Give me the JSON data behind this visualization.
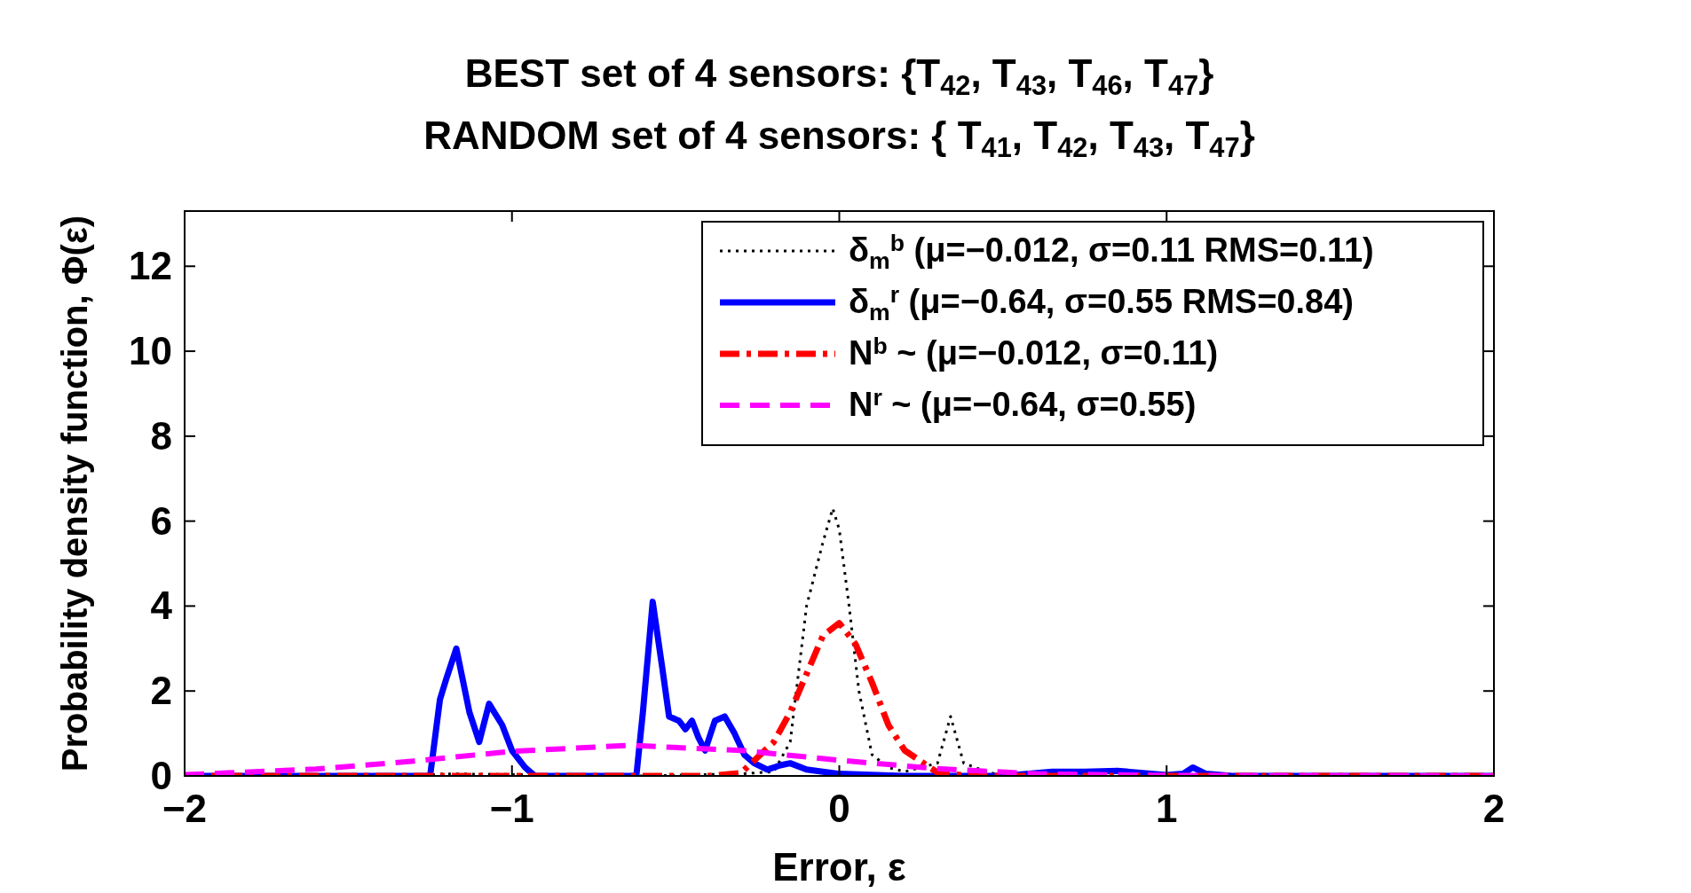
{
  "chart_data": {
    "type": "line",
    "title": "BEST set of 4 sensors: {T$_{42}$, T$_{43}$, T$_{46}$, T$_{47}$}",
    "subtitle": "RANDOM set of 4 sensors: { T$_{41}$, T$_{42}$, T$_{43}$, T$_{47}$}",
    "xlabel": "Error, ε",
    "ylabel": "Probability density function, Φ(ε)",
    "xlim": [
      -2,
      2
    ],
    "ylim": [
      0,
      13.3
    ],
    "xticks": [
      -2,
      -1,
      0,
      1,
      2
    ],
    "yticks": [
      0,
      2,
      4,
      6,
      8,
      10,
      12
    ],
    "grid": false,
    "legend": "top right",
    "series": [
      {
        "name": "δ$_{m}$$^{b}$ (μ=−0.012, σ=0.11 RMS=0.11)",
        "color": "#000000",
        "line_style": "dotted",
        "x": [
          -2,
          -1.3,
          -1.2,
          -0.6,
          -0.3,
          -0.2,
          -0.15,
          -0.1,
          -0.05,
          -0.02,
          0,
          0.03,
          0.06,
          0.1,
          0.15,
          0.2,
          0.25,
          0.3,
          0.34,
          0.38,
          0.45,
          0.5,
          2
        ],
        "values": [
          0,
          0,
          0.05,
          0,
          0.05,
          0.1,
          0.8,
          4,
          5.5,
          6.3,
          5.8,
          4,
          2,
          0.5,
          0.2,
          0.1,
          0.2,
          0.3,
          1.4,
          0.3,
          0.1,
          0,
          0
        ]
      },
      {
        "name": "δ$_{m}$$^{r}$ (μ=−0.64, σ=0.55 RMS=0.84)",
        "color": "#0000ff",
        "line_style": "solid",
        "x": [
          -2,
          -1.25,
          -1.22,
          -1.2,
          -1.17,
          -1.13,
          -1.1,
          -1.07,
          -1.03,
          -1,
          -0.96,
          -0.93,
          -0.62,
          -0.6,
          -0.57,
          -0.54,
          -0.52,
          -0.49,
          -0.47,
          -0.45,
          -0.43,
          -0.41,
          -0.38,
          -0.35,
          -0.32,
          -0.29,
          -0.26,
          -0.22,
          -0.18,
          -0.15,
          -0.1,
          -0.05,
          0,
          0.2,
          0.5,
          0.65,
          0.75,
          0.85,
          1,
          1.05,
          1.08,
          1.12,
          1.2,
          2
        ],
        "values": [
          0,
          0,
          1.8,
          2.3,
          3,
          1.5,
          0.8,
          1.7,
          1.2,
          0.6,
          0.2,
          0,
          0,
          1.5,
          4.1,
          2.5,
          1.4,
          1.3,
          1.1,
          1.3,
          0.9,
          0.6,
          1.3,
          1.4,
          1.0,
          0.5,
          0.3,
          0.15,
          0.25,
          0.3,
          0.15,
          0.1,
          0.05,
          0,
          0,
          0.1,
          0.1,
          0.12,
          0.02,
          0.05,
          0.2,
          0.05,
          0,
          0
        ]
      },
      {
        "name": "N$^{b}$ ~ (μ=−0.012, σ=0.11)",
        "color": "#ff0000",
        "line_style": "dashdot",
        "x": [
          -2,
          -0.4,
          -0.3,
          -0.2,
          -0.15,
          -0.1,
          -0.05,
          0,
          0.05,
          0.1,
          0.15,
          0.2,
          0.3,
          0.4,
          2
        ],
        "values": [
          0,
          0,
          0.07,
          0.8,
          1.5,
          2.4,
          3.3,
          3.6,
          3.1,
          2.2,
          1.2,
          0.6,
          0.08,
          0,
          0
        ]
      },
      {
        "name": "N$^{r}$ ~ (μ=−0.64, σ=0.55)",
        "color": "#ff00ff",
        "line_style": "dashed",
        "x": [
          -2,
          -1.6,
          -1.3,
          -1,
          -0.64,
          -0.3,
          0,
          0.3,
          0.6,
          1,
          2
        ],
        "values": [
          0.03,
          0.16,
          0.35,
          0.58,
          0.72,
          0.6,
          0.37,
          0.17,
          0.05,
          0.01,
          0
        ]
      }
    ]
  }
}
